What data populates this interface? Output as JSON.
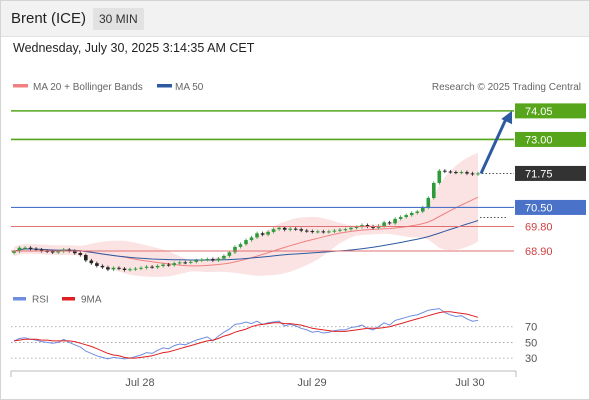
{
  "header": {
    "instrument": "Brent (ICE)",
    "timeframe": "30 MIN",
    "datetime": "Wednesday, July 30, 2025 3:14:35 AM CET"
  },
  "colors": {
    "up_candle": "#2e9b3a",
    "down_candle": "#222222",
    "ma20": "#f08080",
    "bollinger_fill": "#fbd9d9",
    "ma50": "#2d5aa0",
    "resistance": "#56a51a",
    "pivot": "#4a72c8",
    "support": "#e07070",
    "last_price": "#333333",
    "arrow": "#2d5aa0",
    "rsi": "#6f8ee0",
    "rsi_ma": "#e02020"
  },
  "chart_data": [
    {
      "type": "candlestick",
      "legend": [
        {
          "name": "MA 20 + Bollinger Bands",
          "color": "#f08080"
        },
        {
          "name": "MA 50",
          "color": "#2d5aa0"
        }
      ],
      "watermark": "Research © 2025 Trading Central",
      "x_ticks": [
        "Jul 28",
        "Jul 29",
        "Jul 30"
      ],
      "ylim": [
        68.2,
        74.45
      ],
      "close_series": [
        68.88,
        69.02,
        69.02,
        68.98,
        68.95,
        68.9,
        68.88,
        68.85,
        68.88,
        68.95,
        68.9,
        68.82,
        68.75,
        68.55,
        68.45,
        68.35,
        68.3,
        68.22,
        68.28,
        68.25,
        68.2,
        68.23,
        68.25,
        68.28,
        68.32,
        68.3,
        68.35,
        68.4,
        68.38,
        68.45,
        68.48,
        68.47,
        68.5,
        68.55,
        68.58,
        68.6,
        68.55,
        68.62,
        68.72,
        68.85,
        69.05,
        69.15,
        69.3,
        69.4,
        69.55,
        69.5,
        69.6,
        69.7,
        69.75,
        69.68,
        69.72,
        69.7,
        69.65,
        69.63,
        69.6,
        69.62,
        69.6,
        69.62,
        69.65,
        69.68,
        69.7,
        69.75,
        69.78,
        69.85,
        69.8,
        69.75,
        69.82,
        69.95,
        69.92,
        70.08,
        70.15,
        70.22,
        70.3,
        70.35,
        70.5,
        70.85,
        71.4,
        71.85,
        71.82,
        71.8,
        71.78,
        71.8,
        71.75,
        71.72,
        71.75
      ],
      "levels": [
        {
          "value": 74.05,
          "label": "74.05",
          "kind": "resistance"
        },
        {
          "value": 73.0,
          "label": "73.00",
          "kind": "resistance"
        },
        {
          "value": 71.75,
          "label": "71.75",
          "kind": "last"
        },
        {
          "value": 70.5,
          "label": "70.50",
          "kind": "pivot"
        },
        {
          "value": 69.8,
          "label": "69.80",
          "kind": "support"
        },
        {
          "value": 68.9,
          "label": "68.90",
          "kind": "support"
        }
      ],
      "arrow": {
        "from": 71.75,
        "to": 74.05,
        "direction": "up"
      }
    },
    {
      "type": "line",
      "legend": [
        {
          "name": "RSI",
          "color": "#6f8ee0"
        },
        {
          "name": "9MA",
          "color": "#e02020"
        }
      ],
      "y_ticks": [
        70,
        50,
        30
      ],
      "ylim": [
        20,
        90
      ],
      "rsi": [
        52,
        55,
        56,
        54,
        53,
        51,
        50,
        49,
        50,
        54,
        50,
        47,
        44,
        39,
        36,
        33,
        31,
        29,
        31,
        30,
        29,
        30,
        32,
        34,
        37,
        36,
        40,
        43,
        42,
        46,
        48,
        47,
        50,
        53,
        55,
        57,
        52,
        58,
        63,
        67,
        73,
        74,
        76,
        74,
        77,
        73,
        75,
        76,
        77,
        71,
        73,
        71,
        68,
        66,
        63,
        64,
        62,
        63,
        65,
        66,
        66,
        69,
        70,
        72,
        68,
        66,
        70,
        75,
        72,
        78,
        80,
        82,
        84,
        85,
        88,
        91,
        92,
        93,
        88,
        85,
        83,
        84,
        80,
        77,
        78
      ],
      "rsi_ma": [
        52,
        53,
        54,
        54,
        54,
        53,
        53,
        52,
        52,
        52,
        52,
        51,
        49,
        47,
        45,
        42,
        39,
        36,
        34,
        33,
        31,
        30,
        30,
        31,
        32,
        33,
        35,
        37,
        38,
        40,
        42,
        44,
        46,
        48,
        50,
        52,
        53,
        55,
        58,
        60,
        63,
        65,
        67,
        70,
        72,
        73,
        74,
        75,
        75,
        74,
        74,
        73,
        72,
        70,
        68,
        67,
        66,
        65,
        64,
        64,
        64,
        65,
        66,
        67,
        68,
        68,
        68,
        69,
        70,
        72,
        74,
        76,
        78,
        80,
        82,
        84,
        86,
        88,
        89,
        89,
        88,
        87,
        86,
        84,
        82
      ]
    }
  ]
}
